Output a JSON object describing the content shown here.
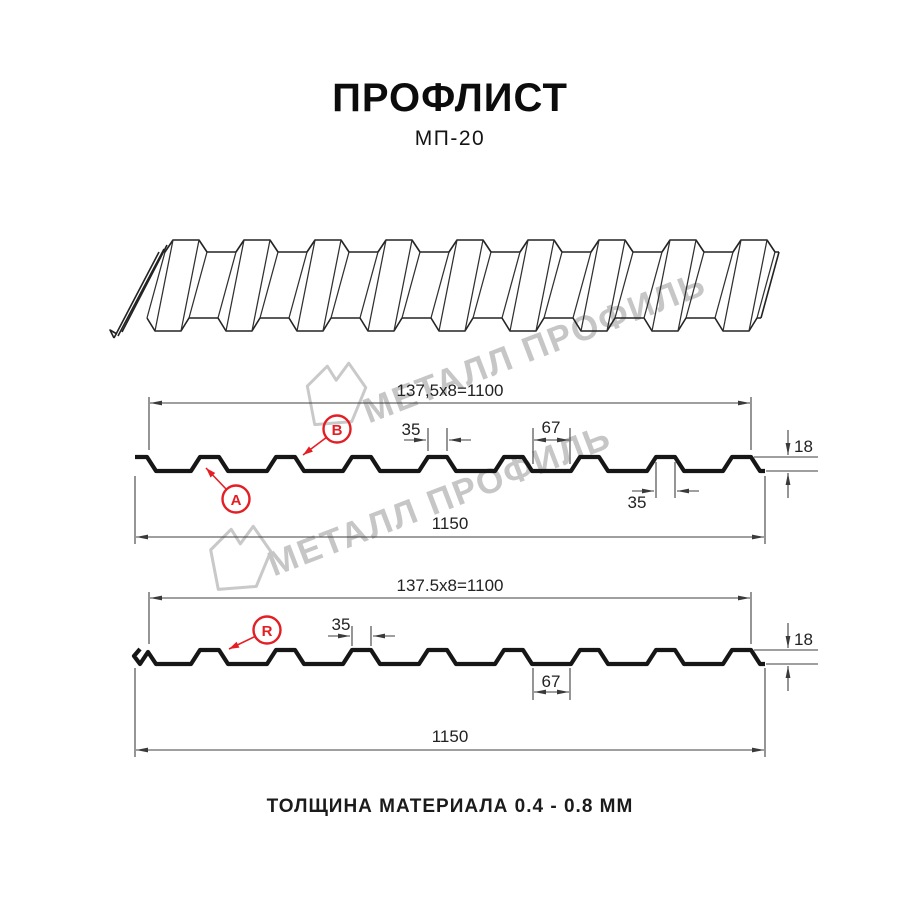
{
  "header": {
    "title": "ПРОФЛИСТ",
    "subtitle": "МП-20"
  },
  "watermark": {
    "text": "МЕТАЛЛ ПРОФИЛЬ"
  },
  "footer": {
    "text": "ТОЛЩИНА МАТЕРИАЛА 0.4 - 0.8 ММ"
  },
  "colors": {
    "accent_red": "#e31e24",
    "dimension_line": "#3f3f3f",
    "profile_stroke": "#161616",
    "watermark_gray": "#c6c6c6"
  },
  "diagram1": {
    "coverage_width": "137,5x8=1100",
    "crest_width_top": "35",
    "valley_width": "67",
    "crest_width_bottom": "35",
    "full_width": "1150",
    "profile_height": "18",
    "label_a": "A",
    "label_b": "B"
  },
  "diagram2": {
    "coverage_width": "137.5x8=1100",
    "crest_width_top": "35",
    "valley_width": "67",
    "full_width": "1150",
    "profile_height": "18",
    "label_r": "R"
  }
}
